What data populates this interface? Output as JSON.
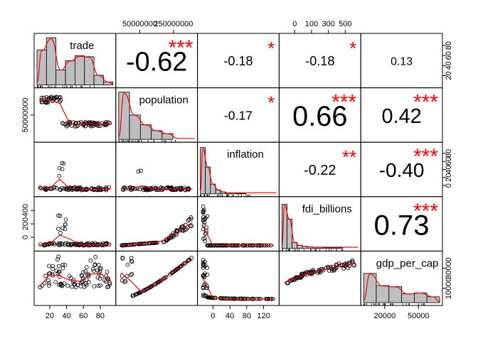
{
  "chart_data": {
    "type": "scatter",
    "variables": [
      "trade",
      "population",
      "inflation",
      "fdi_billions",
      "gdp_per_cap"
    ],
    "axis_ticks": {
      "trade": {
        "bottom": [
          "20",
          "40",
          "60",
          "80"
        ],
        "right": [
          "20",
          "40",
          "60",
          "80"
        ]
      },
      "population": {
        "top": [
          "50000000",
          "250000000"
        ],
        "left": [
          "50000000"
        ]
      },
      "inflation": {
        "bottom": [
          "0",
          "40",
          "80",
          "120"
        ],
        "right": [
          "0",
          "20",
          "40",
          "60",
          "80"
        ]
      },
      "fdi_billions": {
        "top": [
          "0",
          "100",
          "300",
          "500"
        ],
        "left": [
          "0",
          "200",
          "400"
        ]
      },
      "gdp_per_cap": {
        "bottom": [
          "20000",
          "50000"
        ],
        "right": [
          "10000",
          "30000"
        ]
      }
    },
    "correlations": [
      {
        "row": "trade",
        "col": "population",
        "value": "-0.62",
        "stars": "***"
      },
      {
        "row": "trade",
        "col": "inflation",
        "value": "-0.18",
        "stars": "*"
      },
      {
        "row": "trade",
        "col": "fdi_billions",
        "value": "-0.18",
        "stars": "*"
      },
      {
        "row": "trade",
        "col": "gdp_per_cap",
        "value": "0.13",
        "stars": ""
      },
      {
        "row": "population",
        "col": "inflation",
        "value": "-0.17",
        "stars": "*"
      },
      {
        "row": "population",
        "col": "fdi_billions",
        "value": "0.66",
        "stars": "***"
      },
      {
        "row": "population",
        "col": "gdp_per_cap",
        "value": "0.42",
        "stars": "***"
      },
      {
        "row": "inflation",
        "col": "fdi_billions",
        "value": "-0.22",
        "stars": "**"
      },
      {
        "row": "inflation",
        "col": "gdp_per_cap",
        "value": "-0.40",
        "stars": "***"
      },
      {
        "row": "fdi_billions",
        "col": "gdp_per_cap",
        "value": "0.73",
        "stars": "***"
      }
    ],
    "histograms": {
      "trade": [
        0.72,
        0.97,
        0.31,
        0.5,
        0.6,
        0.58,
        0.2,
        0.06
      ],
      "population": [
        0.97,
        0.5,
        0.3,
        0.18,
        0.12,
        0.0,
        0.0
      ],
      "inflation": [
        0.95,
        0.55,
        0.2,
        0.08,
        0.04,
        0.02,
        0.02,
        0.01,
        0.01,
        0.0,
        0.0,
        0.0,
        0.0,
        0.0,
        0.0
      ],
      "fdi_billions": [
        0.9,
        0.6,
        0.12,
        0.06,
        0.04,
        0.03,
        0.02,
        0.02,
        0.01,
        0.01,
        0.01,
        0.01,
        0.0,
        0.0,
        0.0
      ],
      "gdp_per_cap": [
        0.6,
        0.35,
        0.33,
        0.18,
        0.2,
        0.12
      ]
    },
    "colors": {
      "points": "#000000",
      "smooth": "#ff0000",
      "stars": "#ff0000",
      "bars": "#bebebe"
    }
  }
}
